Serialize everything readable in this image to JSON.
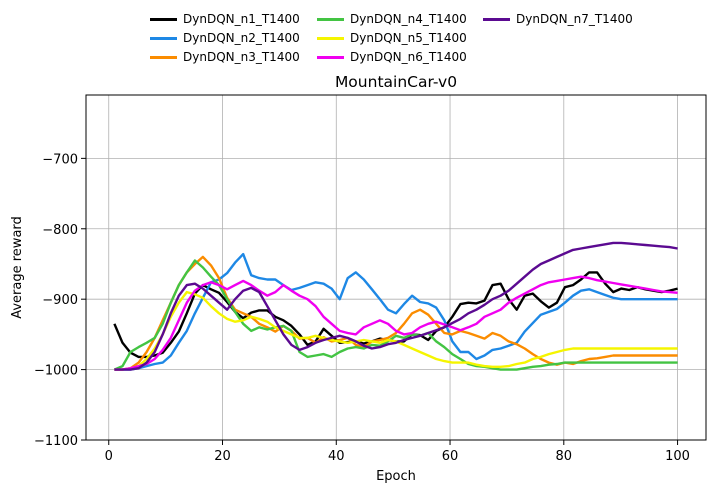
{
  "chart_data": {
    "type": "line",
    "title": "MountainCar-v0",
    "xlabel": "Epoch",
    "ylabel": "Average reward",
    "xlim": [
      -4,
      105
    ],
    "ylim": [
      -1100,
      -610
    ],
    "xticks": [
      0,
      20,
      40,
      60,
      80,
      100
    ],
    "yticks": [
      -1100,
      -1000,
      -900,
      -800,
      -700
    ],
    "xtick_labels": [
      "0",
      "20",
      "40",
      "60",
      "80",
      "100"
    ],
    "ytick_labels": [
      "−1100",
      "−1000",
      "−900",
      "−800",
      "−700"
    ],
    "grid": true,
    "legend_placement": "top-center, above plot, 3 columns",
    "x_start": 1,
    "x_step": 2,
    "series": [
      {
        "name": "DynDQN_n1_T1400",
        "color": "#000000",
        "values": [
          -935,
          -962,
          -976,
          -982,
          -982,
          -980,
          -976,
          -962,
          -946,
          -920,
          -892,
          -880,
          -886,
          -891,
          -904,
          -918,
          -927,
          -919,
          -916,
          -916,
          -925,
          -930,
          -938,
          -950,
          -965,
          -960,
          -942,
          -952,
          -962,
          -961,
          -960,
          -963,
          -960,
          -956,
          -958,
          -960,
          -960,
          -950,
          -951,
          -958,
          -945,
          -940,
          -925,
          -907,
          -905,
          -906,
          -902,
          -880,
          -878,
          -900,
          -915,
          -895,
          -892,
          -903,
          -912,
          -905,
          -883,
          -880,
          -872,
          -862,
          -862,
          -878,
          -890,
          -885,
          -887,
          -883,
          -886,
          -888,
          -890,
          -888,
          -885
        ]
      },
      {
        "name": "DynDQN_n2_T1400",
        "color": "#1e88e5",
        "values": [
          -1000,
          -1000,
          -1000,
          -998,
          -995,
          -992,
          -990,
          -980,
          -962,
          -945,
          -920,
          -898,
          -876,
          -872,
          -863,
          -848,
          -836,
          -866,
          -870,
          -872,
          -872,
          -880,
          -887,
          -884,
          -880,
          -876,
          -878,
          -885,
          -900,
          -870,
          -862,
          -872,
          -886,
          -900,
          -915,
          -920,
          -907,
          -895,
          -904,
          -906,
          -912,
          -930,
          -960,
          -975,
          -975,
          -985,
          -980,
          -972,
          -970,
          -966,
          -962,
          -946,
          -934,
          -922,
          -918,
          -914,
          -905,
          -895,
          -888,
          -886,
          -890,
          -894,
          -898,
          -900,
          -900,
          -900,
          -900,
          -900,
          -900,
          -900,
          -900
        ]
      },
      {
        "name": "DynDQN_n3_T1400",
        "color": "#fb8c00",
        "values": [
          -1000,
          -1000,
          -998,
          -990,
          -975,
          -955,
          -930,
          -905,
          -880,
          -862,
          -850,
          -840,
          -852,
          -870,
          -898,
          -915,
          -920,
          -925,
          -935,
          -940,
          -946,
          -938,
          -945,
          -956,
          -955,
          -962,
          -954,
          -960,
          -958,
          -955,
          -965,
          -968,
          -960,
          -958,
          -955,
          -948,
          -935,
          -920,
          -915,
          -922,
          -935,
          -948,
          -950,
          -945,
          -948,
          -952,
          -956,
          -948,
          -952,
          -960,
          -964,
          -970,
          -978,
          -985,
          -990,
          -993,
          -990,
          -992,
          -988,
          -985,
          -984,
          -982,
          -980,
          -980,
          -980,
          -980,
          -980,
          -980,
          -980,
          -980,
          -980
        ]
      },
      {
        "name": "DynDQN_n4_T1400",
        "color": "#43c443",
        "values": [
          -1000,
          -995,
          -975,
          -968,
          -962,
          -955,
          -935,
          -905,
          -880,
          -862,
          -845,
          -855,
          -868,
          -880,
          -900,
          -918,
          -935,
          -945,
          -940,
          -943,
          -940,
          -938,
          -945,
          -975,
          -982,
          -980,
          -978,
          -982,
          -975,
          -970,
          -968,
          -970,
          -965,
          -966,
          -960,
          -952,
          -955,
          -950,
          -952,
          -948,
          -960,
          -968,
          -978,
          -985,
          -992,
          -995,
          -996,
          -998,
          -1000,
          -1000,
          -1000,
          -998,
          -996,
          -995,
          -993,
          -992,
          -990,
          -990,
          -990,
          -990,
          -990,
          -990,
          -990,
          -990,
          -990,
          -990,
          -990,
          -990,
          -990,
          -990,
          -990
        ]
      },
      {
        "name": "DynDQN_n5_T1400",
        "color": "#f5f500",
        "values": [
          -1000,
          -1000,
          -998,
          -995,
          -985,
          -970,
          -950,
          -925,
          -905,
          -890,
          -893,
          -898,
          -910,
          -920,
          -928,
          -932,
          -930,
          -925,
          -928,
          -932,
          -940,
          -945,
          -950,
          -955,
          -955,
          -952,
          -955,
          -958,
          -960,
          -962,
          -960,
          -958,
          -960,
          -962,
          -958,
          -960,
          -965,
          -970,
          -975,
          -980,
          -985,
          -988,
          -990,
          -990,
          -990,
          -993,
          -995,
          -996,
          -996,
          -995,
          -992,
          -990,
          -985,
          -982,
          -978,
          -975,
          -972,
          -970,
          -970,
          -970,
          -970,
          -970,
          -970,
          -970,
          -970,
          -970,
          -970,
          -970,
          -970,
          -970,
          -970
        ]
      },
      {
        "name": "DynDQN_n6_T1400",
        "color": "#f000f0",
        "values": [
          -1000,
          -1000,
          -998,
          -995,
          -992,
          -985,
          -972,
          -955,
          -930,
          -905,
          -888,
          -880,
          -876,
          -880,
          -886,
          -880,
          -874,
          -880,
          -888,
          -895,
          -890,
          -880,
          -888,
          -895,
          -900,
          -910,
          -925,
          -935,
          -945,
          -948,
          -950,
          -940,
          -935,
          -930,
          -935,
          -945,
          -950,
          -948,
          -940,
          -935,
          -932,
          -936,
          -940,
          -944,
          -940,
          -935,
          -925,
          -920,
          -915,
          -905,
          -898,
          -892,
          -886,
          -880,
          -876,
          -874,
          -872,
          -870,
          -868,
          -870,
          -873,
          -875,
          -877,
          -879,
          -881,
          -883,
          -885,
          -887,
          -889,
          -890,
          -891
        ]
      },
      {
        "name": "DynDQN_n7_T1400",
        "color": "#5b0a91",
        "values": [
          -1000,
          -1000,
          -1000,
          -998,
          -990,
          -975,
          -950,
          -920,
          -895,
          -880,
          -878,
          -885,
          -895,
          -905,
          -915,
          -900,
          -888,
          -884,
          -890,
          -910,
          -930,
          -950,
          -965,
          -972,
          -968,
          -962,
          -958,
          -955,
          -952,
          -955,
          -960,
          -966,
          -970,
          -968,
          -964,
          -962,
          -958,
          -955,
          -952,
          -948,
          -944,
          -940,
          -934,
          -928,
          -920,
          -915,
          -908,
          -900,
          -895,
          -888,
          -878,
          -868,
          -858,
          -850,
          -845,
          -840,
          -835,
          -830,
          -828,
          -826,
          -824,
          -822,
          -820,
          -820,
          -821,
          -822,
          -823,
          -824,
          -825,
          -826,
          -828
        ]
      }
    ]
  }
}
